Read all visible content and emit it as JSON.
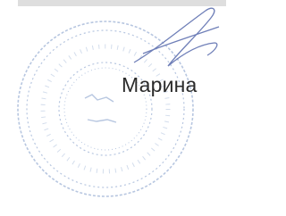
{
  "signature_block": {
    "name": "Марина"
  }
}
